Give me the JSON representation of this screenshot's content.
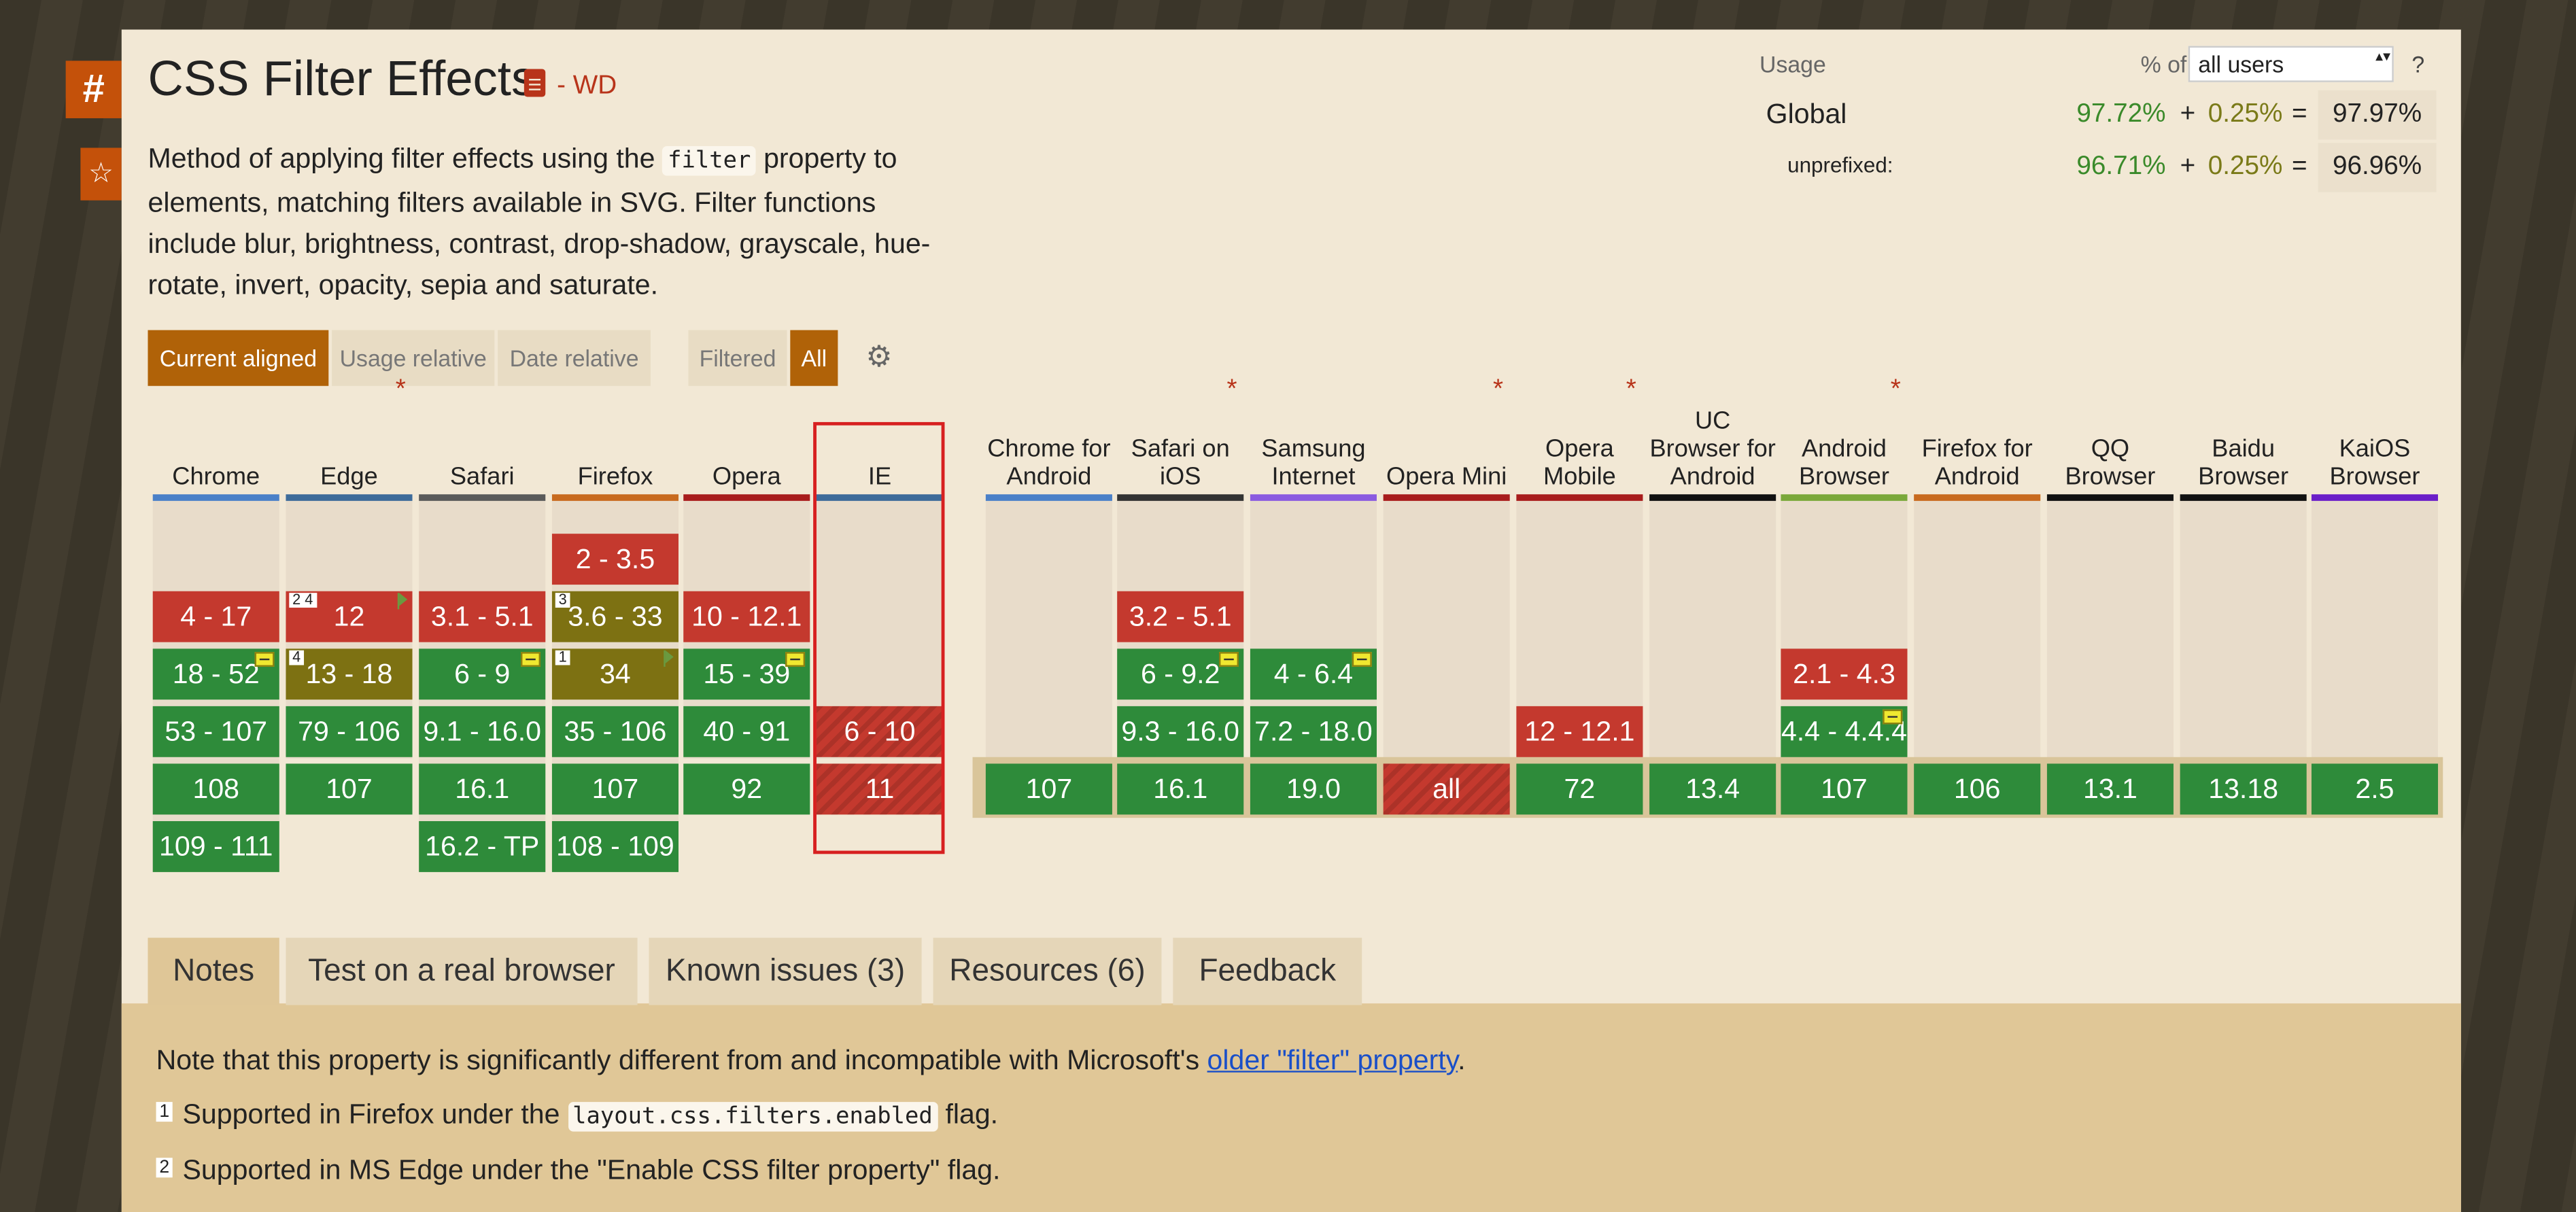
{
  "side": {
    "hash": "#",
    "star": "☆"
  },
  "feature": {
    "title": "CSS Filter Effects",
    "status": "- WD",
    "desc_part1": "Method of applying filter effects using the",
    "desc_code": "filter",
    "desc_part2": "property to elements, matching filters available in SVG. Filter functions include blur, brightness, contrast, drop-shadow, grayscale, hue-rotate, invert, opacity, sepia and saturate."
  },
  "toolbar": {
    "current_aligned": "Current aligned",
    "usage_relative": "Usage relative",
    "date_relative": "Date relative",
    "filtered": "Filtered",
    "all": "All"
  },
  "usage": {
    "label": "Usage",
    "pct_of": "% of",
    "select_value": "all users",
    "help": "?",
    "global_label": "Global",
    "global_full": "97.72%",
    "global_partial": "0.25%",
    "global_total": "97.97%",
    "unpref_label": "unprefixed:",
    "unpref_full": "96.71%",
    "unpref_partial": "0.25%",
    "unpref_total": "96.96%",
    "plus": "+",
    "eq": "="
  },
  "browsers": [
    {
      "name": "Chrome",
      "ast": "",
      "bar": "#4a80c8",
      "cells": [
        {
          "row": 2,
          "label": "4 - 17",
          "s": "n"
        },
        {
          "row": 3,
          "label": "18 - 52",
          "s": "y",
          "minus": true
        },
        {
          "row": 4,
          "label": "53 - 107",
          "s": "y"
        },
        {
          "row": 5,
          "label": "108",
          "s": "y"
        },
        {
          "row": 6,
          "label": "109 - 111",
          "s": "y"
        }
      ]
    },
    {
      "name": "Edge",
      "ast": "*",
      "bar": "#3d6b9a",
      "cells": [
        {
          "row": 2,
          "label": "12",
          "s": "n",
          "badge": "2 4",
          "flag": true
        },
        {
          "row": 3,
          "label": "13 - 18",
          "s": "p",
          "badge": "4"
        },
        {
          "row": 4,
          "label": "79 - 106",
          "s": "y"
        },
        {
          "row": 5,
          "label": "107",
          "s": "y"
        }
      ]
    },
    {
      "name": "Safari",
      "ast": "",
      "bar": "#5a5a5a",
      "cells": [
        {
          "row": 2,
          "label": "3.1 - 5.1",
          "s": "n"
        },
        {
          "row": 3,
          "label": "6 - 9",
          "s": "y",
          "minus": true
        },
        {
          "row": 4,
          "label": "9.1 - 16.0",
          "s": "y"
        },
        {
          "row": 5,
          "label": "16.1",
          "s": "y"
        },
        {
          "row": 6,
          "label": "16.2 - TP",
          "s": "y"
        }
      ]
    },
    {
      "name": "Firefox",
      "ast": "",
      "bar": "#c86a1e",
      "cells": [
        {
          "row": 1,
          "label": "2 - 3.5",
          "s": "n"
        },
        {
          "row": 2,
          "label": "3.6 - 33",
          "s": "p",
          "badge": "3"
        },
        {
          "row": 3,
          "label": "34",
          "s": "p",
          "badge": "1",
          "flag": true
        },
        {
          "row": 4,
          "label": "35 - 106",
          "s": "y"
        },
        {
          "row": 5,
          "label": "107",
          "s": "y"
        },
        {
          "row": 6,
          "label": "108 - 109",
          "s": "y"
        }
      ]
    },
    {
      "name": "Opera",
      "ast": "",
      "bar": "#a81c1c",
      "cells": [
        {
          "row": 2,
          "label": "10 - 12.1",
          "s": "n"
        },
        {
          "row": 3,
          "label": "15 - 39",
          "s": "y",
          "minus": true
        },
        {
          "row": 4,
          "label": "40 - 91",
          "s": "y"
        },
        {
          "row": 5,
          "label": "92",
          "s": "y"
        }
      ]
    },
    {
      "name": "IE",
      "ast": "",
      "bar": "#3d6b9a",
      "cells": [
        {
          "row": 4,
          "label": "6 - 10",
          "s": "n",
          "striped": true
        },
        {
          "row": 5,
          "label": "11",
          "s": "n",
          "striped": true
        }
      ]
    },
    {
      "name": "Chrome for Android",
      "ast": "",
      "bar": "#4a80c8",
      "cells": [
        {
          "row": 5,
          "label": "107",
          "s": "y"
        }
      ]
    },
    {
      "name": "Safari on iOS",
      "ast": "*",
      "bar": "#333333",
      "cells": [
        {
          "row": 2,
          "label": "3.2 - 5.1",
          "s": "n"
        },
        {
          "row": 3,
          "label": "6 - 9.2",
          "s": "y",
          "minus": true
        },
        {
          "row": 4,
          "label": "9.3 - 16.0",
          "s": "y"
        },
        {
          "row": 5,
          "label": "16.1",
          "s": "y"
        }
      ]
    },
    {
      "name": "Samsung Internet",
      "ast": "",
      "bar": "#8a5ae0",
      "cells": [
        {
          "row": 3,
          "label": "4 - 6.4",
          "s": "y",
          "minus": true
        },
        {
          "row": 4,
          "label": "7.2 - 18.0",
          "s": "y"
        },
        {
          "row": 5,
          "label": "19.0",
          "s": "y"
        }
      ]
    },
    {
      "name": "Opera Mini",
      "ast": "*",
      "bar": "#a81c1c",
      "cells": [
        {
          "row": 5,
          "label": "all",
          "s": "n",
          "striped": true
        }
      ]
    },
    {
      "name": "Opera Mobile",
      "ast": "*",
      "bar": "#a81c1c",
      "cells": [
        {
          "row": 4,
          "label": "12 - 12.1",
          "s": "n"
        },
        {
          "row": 5,
          "label": "72",
          "s": "y"
        }
      ]
    },
    {
      "name": "UC Browser for Android",
      "ast": "",
      "bar": "#111111",
      "cells": [
        {
          "row": 5,
          "label": "13.4",
          "s": "y"
        }
      ]
    },
    {
      "name": "Android Browser",
      "ast": "*",
      "bar": "#7aa83a",
      "cells": [
        {
          "row": 3,
          "label": "2.1 - 4.3",
          "s": "n"
        },
        {
          "row": 4,
          "label": "4.4 - 4.4.4",
          "s": "y",
          "minus": true
        },
        {
          "row": 5,
          "label": "107",
          "s": "y"
        }
      ]
    },
    {
      "name": "Firefox for Android",
      "ast": "",
      "bar": "#c86a1e",
      "cells": [
        {
          "row": 5,
          "label": "106",
          "s": "y"
        }
      ]
    },
    {
      "name": "QQ Browser",
      "ast": "",
      "bar": "#111111",
      "cells": [
        {
          "row": 5,
          "label": "13.1",
          "s": "y"
        }
      ]
    },
    {
      "name": "Baidu Browser",
      "ast": "",
      "bar": "#111111",
      "cells": [
        {
          "row": 5,
          "label": "13.18",
          "s": "y"
        }
      ]
    },
    {
      "name": "KaiOS Browser",
      "ast": "",
      "bar": "#6a1ec8",
      "cells": [
        {
          "row": 5,
          "label": "2.5",
          "s": "y"
        }
      ]
    }
  ],
  "tabs": [
    "Notes",
    "Test on a real browser",
    "Known issues (3)",
    "Resources (6)",
    "Feedback"
  ],
  "notes": {
    "main_prefix": "Note that this property is significantly different from and incompatible with Microsoft's",
    "main_link": "older \"filter\" property",
    "main_suffix": ".",
    "n1_num": "1",
    "n1_prefix": "Supported in Firefox under the",
    "n1_code": "layout.css.filters.enabled",
    "n1_suffix": "flag.",
    "n2_num": "2",
    "n2_text": "Supported in MS Edge under the \"Enable CSS filter property\" flag."
  },
  "colors": {
    "supported": "#2e8b3a",
    "unsupported": "#c4392e",
    "partial": "#7d7112",
    "accent": "#b06208",
    "highlight": "#d72020"
  }
}
